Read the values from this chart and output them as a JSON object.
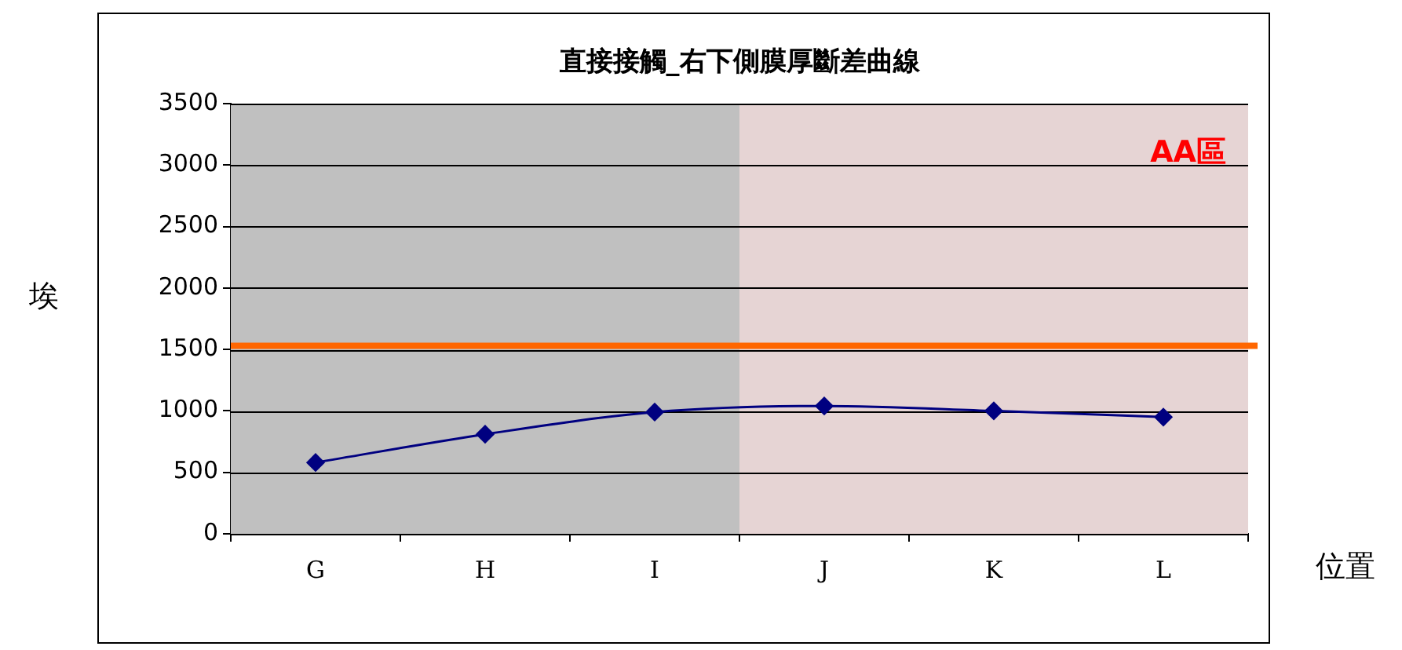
{
  "chart_data": {
    "type": "line",
    "title": "直接接觸_右下側膜厚斷差曲線",
    "xlabel": "位置",
    "ylabel": "埃",
    "categories": [
      "G",
      "H",
      "I",
      "J",
      "K",
      "L"
    ],
    "series": [
      {
        "color": "#000080",
        "values": [
          580,
          810,
          990,
          1040,
          1000,
          950
        ]
      }
    ],
    "ylim": [
      0,
      3500
    ],
    "yticks": [
      0,
      500,
      1000,
      1500,
      2000,
      2500,
      3000,
      3500
    ],
    "grid": "y",
    "marker": "diamond",
    "legend": false,
    "ref_lines": [
      {
        "axis": "y",
        "value": 1530,
        "color": "#ff6600"
      }
    ],
    "bands": [
      {
        "axis": "x",
        "from": "J",
        "to": "L",
        "label": "AA區",
        "color": "#e6d4d4"
      }
    ]
  }
}
